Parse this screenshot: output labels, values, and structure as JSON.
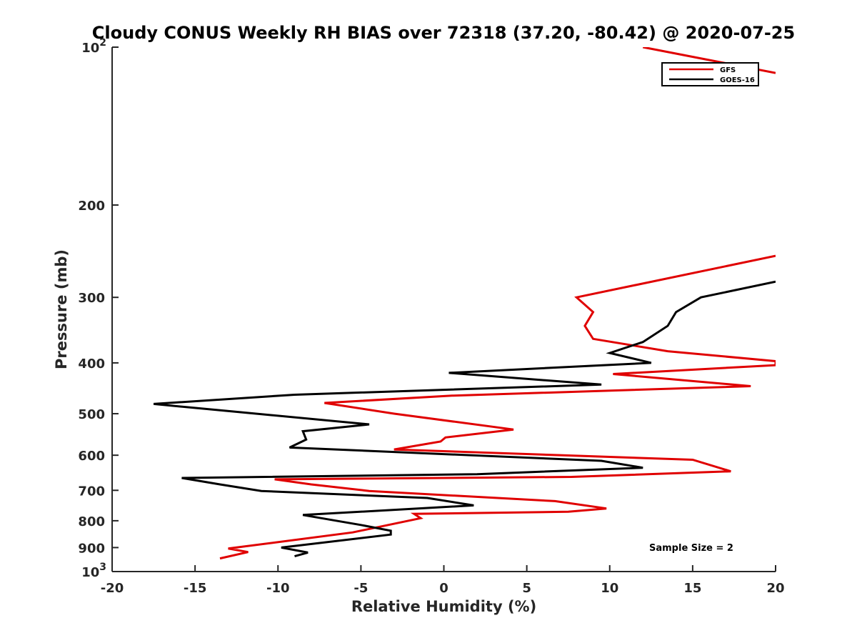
{
  "chart_data": {
    "type": "line",
    "title": "Cloudy CONUS Weekly RH BIAS over 72318 (37.20, -80.42) @ 2020-07-25",
    "xlabel": "Relative Humidity (%)",
    "ylabel": "Pressure (mb)",
    "xlim": [
      -20,
      20
    ],
    "ylim": [
      100,
      1000
    ],
    "yscale": "log",
    "y_reversed": true,
    "xticks": [
      -20,
      -15,
      -10,
      -5,
      0,
      5,
      10,
      15,
      20
    ],
    "yticks": [
      {
        "value": 100,
        "label": "10",
        "exponent": "2"
      },
      {
        "value": 200,
        "label": "200",
        "exponent": ""
      },
      {
        "value": 300,
        "label": "300",
        "exponent": ""
      },
      {
        "value": 400,
        "label": "400",
        "exponent": ""
      },
      {
        "value": 500,
        "label": "500",
        "exponent": ""
      },
      {
        "value": 600,
        "label": "600",
        "exponent": ""
      },
      {
        "value": 700,
        "label": "700",
        "exponent": ""
      },
      {
        "value": 800,
        "label": "800",
        "exponent": ""
      },
      {
        "value": 900,
        "label": "900",
        "exponent": ""
      },
      {
        "value": 1000,
        "label": "10",
        "exponent": "3"
      }
    ],
    "legend_position": "top-right",
    "annotation": "Sample Size = 2",
    "series": [
      {
        "name": "GFS",
        "color": "#e00000",
        "points": [
          [
            12,
            100
          ],
          [
            20,
            112
          ],
          [
            20,
            250
          ],
          [
            8,
            300
          ],
          [
            9,
            320
          ],
          [
            8.5,
            340
          ],
          [
            9,
            360
          ],
          [
            13.5,
            380
          ],
          [
            20,
            397
          ],
          [
            20,
            404
          ],
          [
            10.2,
            420
          ],
          [
            18.5,
            443
          ],
          [
            0.5,
            462
          ],
          [
            -7.2,
            477
          ],
          [
            -3,
            500
          ],
          [
            4.2,
            536
          ],
          [
            0.1,
            555
          ],
          [
            -0.2,
            565
          ],
          [
            -3,
            585
          ],
          [
            15,
            612
          ],
          [
            17.3,
            644
          ],
          [
            7.7,
            660
          ],
          [
            -10.2,
            667
          ],
          [
            -8,
            682
          ],
          [
            -4.5,
            702
          ],
          [
            6.7,
            734
          ],
          [
            9.8,
            758
          ],
          [
            7.5,
            769
          ],
          [
            -1.8,
            776
          ],
          [
            -1.4,
            791
          ],
          [
            -5.5,
            842
          ],
          [
            -13,
            904
          ],
          [
            -11.8,
            918
          ],
          [
            -13.5,
            944
          ]
        ]
      },
      {
        "name": "GOES-16",
        "color": "#000000",
        "points": [
          [
            20,
            280
          ],
          [
            15.5,
            300
          ],
          [
            14,
            320
          ],
          [
            13.5,
            340
          ],
          [
            12,
            365
          ],
          [
            10,
            383
          ],
          [
            12.5,
            400
          ],
          [
            0.3,
            418
          ],
          [
            9.5,
            440
          ],
          [
            -9,
            460
          ],
          [
            -17.5,
            479
          ],
          [
            -12.8,
            495
          ],
          [
            -4.5,
            524
          ],
          [
            -8.5,
            540
          ],
          [
            -8.3,
            560
          ],
          [
            -9.3,
            580
          ],
          [
            9.5,
            615
          ],
          [
            12,
            634
          ],
          [
            2,
            652
          ],
          [
            -15.8,
            663
          ],
          [
            -13.5,
            682
          ],
          [
            -11,
            702
          ],
          [
            -1,
            724
          ],
          [
            1.8,
            748
          ],
          [
            -8.5,
            780
          ],
          [
            -5,
            815
          ],
          [
            -3.2,
            836
          ],
          [
            -3.2,
            850
          ],
          [
            -9.8,
            900
          ],
          [
            -8.2,
            920
          ],
          [
            -9,
            935
          ]
        ]
      }
    ]
  }
}
